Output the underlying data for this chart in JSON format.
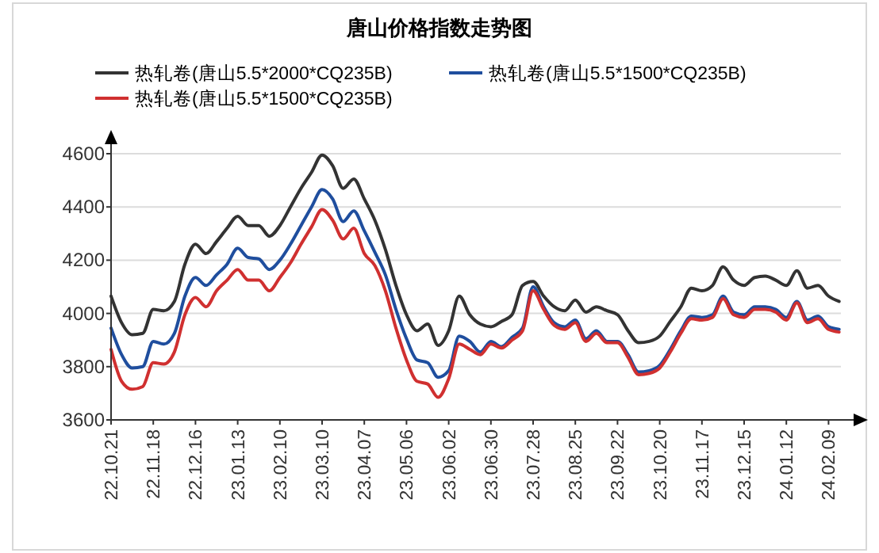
{
  "chart_data": {
    "type": "line",
    "title": "唐山价格指数走势图",
    "categories": [
      "22.10.21",
      null,
      null,
      null,
      "22.11.18",
      null,
      null,
      null,
      "22.12.16",
      null,
      null,
      null,
      "23.01.13",
      null,
      null,
      null,
      "23.02.10",
      null,
      null,
      null,
      "23.03.10",
      null,
      null,
      null,
      "23.04.07",
      null,
      null,
      null,
      "23.05.06",
      null,
      null,
      null,
      "23.06.02",
      null,
      null,
      null,
      "23.06.30",
      null,
      null,
      null,
      "23.07.28",
      null,
      null,
      null,
      "23.08.25",
      null,
      null,
      null,
      "23.09.22",
      null,
      null,
      null,
      "23.10.20",
      null,
      null,
      null,
      "23.11.17",
      null,
      null,
      null,
      "23.12.15",
      null,
      null,
      null,
      "24.01.12",
      null,
      null,
      null,
      "24.02.09",
      null
    ],
    "series": [
      {
        "name": "热轧卷(唐山5.5*2000*CQ235B)",
        "color": "#333333",
        "values": [
          4065,
          3965,
          3920,
          3925,
          4015,
          4010,
          4045,
          4185,
          4260,
          4225,
          4270,
          4320,
          4365,
          4330,
          4330,
          4290,
          4330,
          4400,
          4470,
          4530,
          4595,
          4555,
          4470,
          4505,
          4430,
          4350,
          4240,
          4105,
          3995,
          3935,
          3960,
          3880,
          3935,
          4065,
          3995,
          3960,
          3950,
          3970,
          3995,
          4105,
          4120,
          4065,
          4025,
          4010,
          4050,
          4005,
          4025,
          4010,
          3995,
          3935,
          3890,
          3895,
          3915,
          3970,
          4025,
          4095,
          4085,
          4105,
          4175,
          4125,
          4105,
          4135,
          4140,
          4125,
          4105,
          4160,
          4095,
          4105,
          4065,
          4045
        ]
      },
      {
        "name": "热轧卷(唐山5.5*1500*CQ235B)",
        "color": "#1f4e9e",
        "values": [
          3945,
          3845,
          3795,
          3800,
          3895,
          3885,
          3925,
          4065,
          4135,
          4105,
          4145,
          4185,
          4245,
          4210,
          4205,
          4165,
          4200,
          4260,
          4330,
          4400,
          4465,
          4430,
          4345,
          4385,
          4310,
          4230,
          4145,
          4015,
          3905,
          3825,
          3815,
          3760,
          3785,
          3915,
          3895,
          3855,
          3895,
          3875,
          3910,
          3945,
          4100,
          4025,
          3965,
          3950,
          3975,
          3905,
          3935,
          3895,
          3895,
          3845,
          3780,
          3785,
          3805,
          3865,
          3935,
          3990,
          3985,
          3995,
          4065,
          4005,
          3995,
          4025,
          4025,
          4015,
          3985,
          4045,
          3975,
          3990,
          3950,
          3940
        ]
      },
      {
        "name": "热轧卷(唐山5.5*1500*CQ235B)",
        "color": "#d03030",
        "values": [
          3865,
          3745,
          3715,
          3725,
          3815,
          3810,
          3855,
          3995,
          4060,
          4025,
          4085,
          4125,
          4165,
          4125,
          4125,
          4085,
          4135,
          4190,
          4260,
          4325,
          4390,
          4350,
          4280,
          4320,
          4225,
          4180,
          4085,
          3945,
          3825,
          3745,
          3735,
          3685,
          3755,
          3885,
          3865,
          3845,
          3885,
          3870,
          3900,
          3935,
          4085,
          4015,
          3955,
          3940,
          3965,
          3895,
          3925,
          3890,
          3890,
          3835,
          3770,
          3775,
          3795,
          3855,
          3925,
          3980,
          3975,
          3985,
          4055,
          3995,
          3985,
          4015,
          4015,
          4005,
          3975,
          4040,
          3965,
          3980,
          3940,
          3930
        ]
      }
    ],
    "ylim": [
      3600,
      4600
    ],
    "yticks": [
      3600,
      3800,
      4000,
      4200,
      4400,
      4600
    ],
    "grid": "y",
    "legend": "top"
  }
}
